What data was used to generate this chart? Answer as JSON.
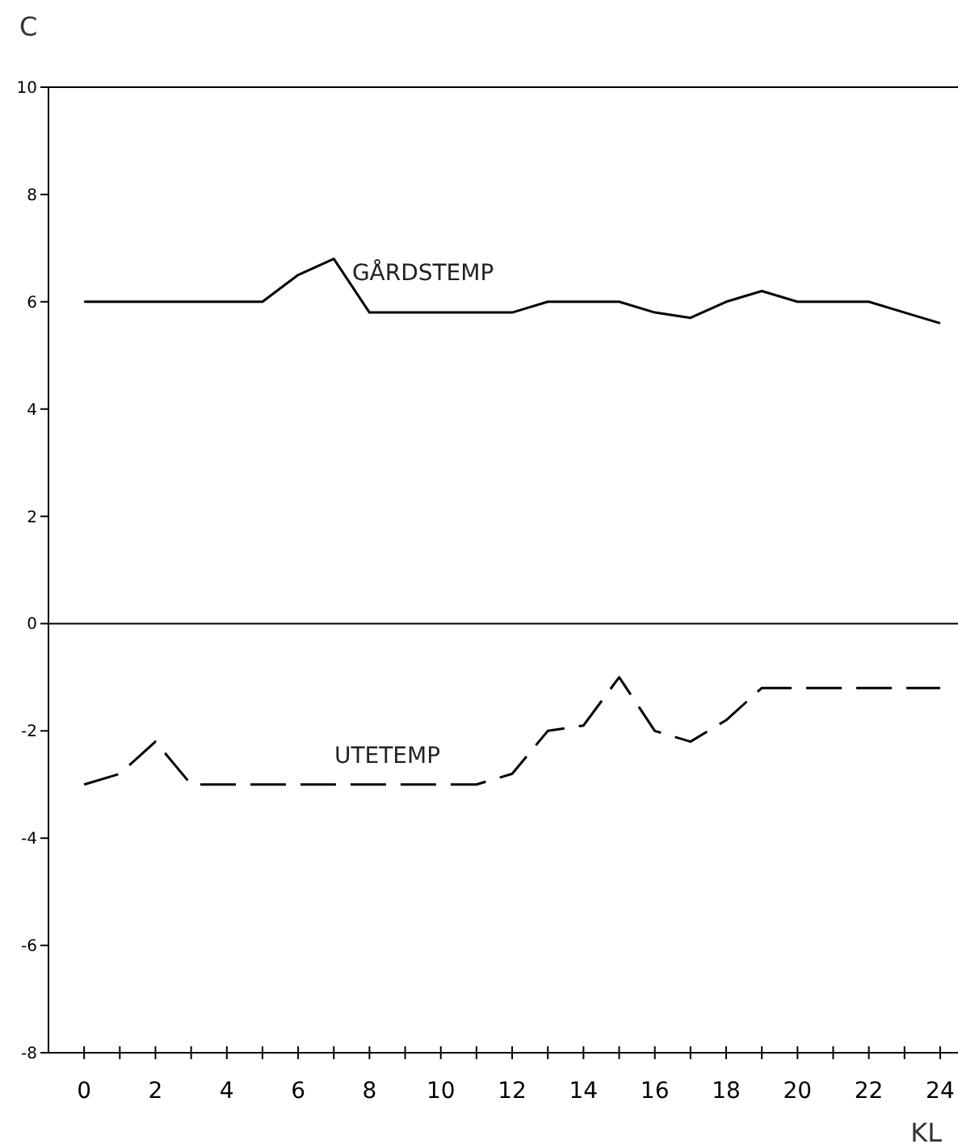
{
  "chart_data": {
    "type": "line",
    "ylabel": "C",
    "xlabel": "KL",
    "x": [
      0,
      1,
      2,
      3,
      4,
      5,
      6,
      7,
      8,
      9,
      10,
      11,
      12,
      13,
      14,
      15,
      16,
      17,
      18,
      19,
      20,
      21,
      22,
      23,
      24
    ],
    "series": [
      {
        "name": "GÅRDSTEMP",
        "color": "#000000",
        "line_style": "solid",
        "values": [
          6,
          6,
          6,
          6,
          6,
          6,
          6.5,
          6.8,
          5.8,
          5.8,
          5.8,
          5.8,
          5.8,
          6,
          6,
          6,
          5.8,
          5.7,
          6,
          6.2,
          6,
          6,
          6,
          5.8,
          5.6
        ]
      },
      {
        "name": "UTETEMP",
        "color": "#000000",
        "line_style": "dashed",
        "values": [
          -3,
          -2.8,
          -2.2,
          -3,
          -3,
          -3,
          -3,
          -3,
          -3,
          -3,
          -3,
          -3,
          -2.8,
          -2,
          -1.9,
          -1,
          -2,
          -2.2,
          -1.8,
          -1.2,
          -1.2,
          -1.2,
          -1.2,
          -1.2,
          -1.2
        ]
      }
    ],
    "xlim": [
      -1,
      24.5
    ],
    "xticks": [
      0,
      {
        "value": 1,
        "label": null
      },
      2,
      {
        "value": 3,
        "label": null
      },
      4,
      {
        "value": 5,
        "label": null
      },
      6,
      {
        "value": 7,
        "label": null
      },
      8,
      {
        "value": 9,
        "label": null
      },
      10,
      {
        "value": 11,
        "label": null
      },
      12,
      {
        "value": 13,
        "label": null
      },
      14,
      {
        "value": 15,
        "label": null
      },
      16,
      {
        "value": 17,
        "label": null
      },
      18,
      {
        "value": 19,
        "label": null
      },
      20,
      {
        "value": 21,
        "label": null
      },
      22,
      {
        "value": 23,
        "label": null
      },
      24
    ],
    "ylim": [
      -8,
      10
    ],
    "yticks": [
      -8,
      -6,
      -4,
      -2,
      0,
      2,
      4,
      6,
      8,
      10
    ],
    "ref_lines": [
      {
        "axis": "y",
        "value": 0
      }
    ],
    "marker": "none"
  }
}
